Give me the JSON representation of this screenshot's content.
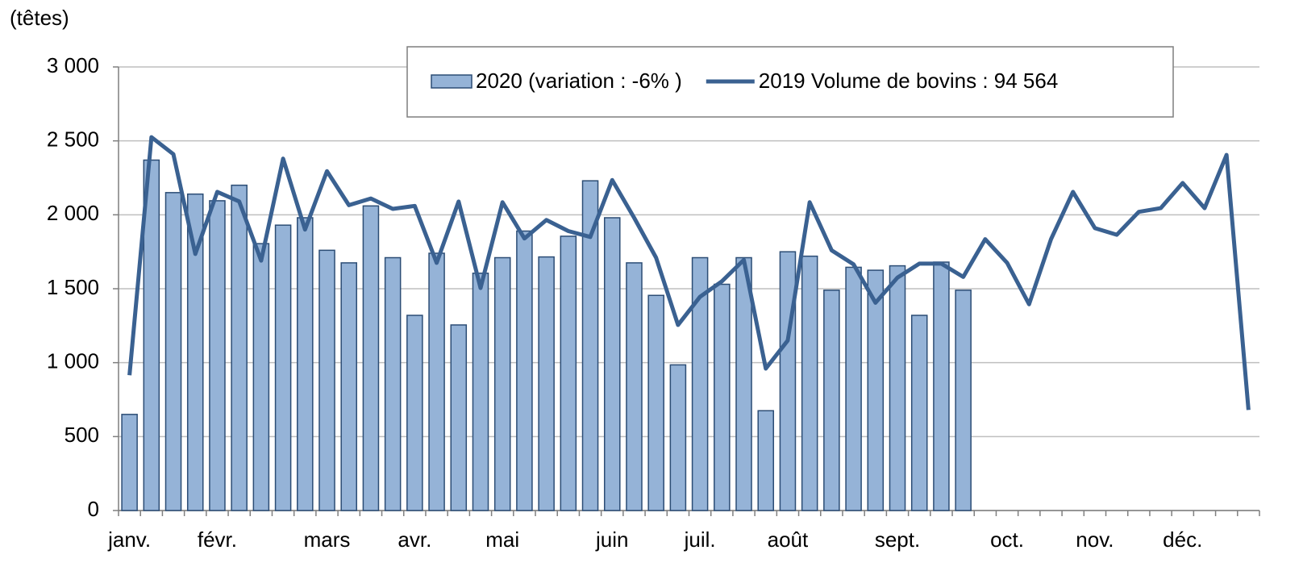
{
  "chart_data": {
    "type": "bar-line",
    "y_label": "(têtes)",
    "categories": [
      "janv.",
      null,
      null,
      null,
      "févr.",
      null,
      null,
      null,
      null,
      "mars",
      null,
      null,
      null,
      "avr.",
      null,
      null,
      null,
      "mai",
      null,
      null,
      null,
      null,
      "juin",
      null,
      null,
      null,
      "juil.",
      null,
      null,
      null,
      "août",
      null,
      null,
      null,
      null,
      "sept.",
      null,
      null,
      null,
      null,
      "oct.",
      null,
      null,
      null,
      "nov.",
      null,
      null,
      null,
      "déc.",
      null,
      null,
      null
    ],
    "series": [
      {
        "name": "2020 (variation : -6% )",
        "type": "bar",
        "color": "#95b3d7",
        "edge_color": "#2c4d75",
        "values": [
          650,
          2370,
          2150,
          2140,
          2095,
          2200,
          1805,
          1930,
          1980,
          1760,
          1675,
          2060,
          1710,
          1320,
          1740,
          1255,
          1605,
          1710,
          1890,
          1715,
          1855,
          2230,
          1980,
          1675,
          1455,
          985,
          1710,
          1530,
          1710,
          675,
          1750,
          1720,
          1490,
          1645,
          1625,
          1655,
          1320,
          1680,
          1490,
          null,
          null,
          null,
          null,
          null,
          null,
          null,
          null,
          null,
          null,
          null,
          null,
          null
        ]
      },
      {
        "name": "2019 Volume de bovins :  94 564",
        "type": "line",
        "color": "#3a6191",
        "values": [
          915,
          2525,
          2410,
          1735,
          2155,
          2090,
          1690,
          2380,
          1900,
          2295,
          2065,
          2110,
          2040,
          2060,
          1675,
          2090,
          1505,
          2085,
          1840,
          1965,
          1890,
          1850,
          2235,
          1980,
          1710,
          1255,
          1445,
          1550,
          1695,
          960,
          1150,
          2085,
          1760,
          1665,
          1405,
          1575,
          1670,
          1670,
          1580,
          1835,
          1675,
          1395,
          1835,
          2155,
          1910,
          1865,
          2020,
          2045,
          2215,
          2045,
          2405,
          680
        ]
      }
    ],
    "ylim": [
      0,
      3000
    ],
    "yticks": [
      0,
      500,
      {
        "value": 1000,
        "label": "1 000"
      },
      {
        "value": 1500,
        "label": "1 500"
      },
      {
        "value": 2000,
        "label": "2 000"
      },
      {
        "value": 2500,
        "label": "2 500"
      },
      {
        "value": 3000,
        "label": "3 000"
      }
    ],
    "grid": true,
    "legend": "top"
  }
}
